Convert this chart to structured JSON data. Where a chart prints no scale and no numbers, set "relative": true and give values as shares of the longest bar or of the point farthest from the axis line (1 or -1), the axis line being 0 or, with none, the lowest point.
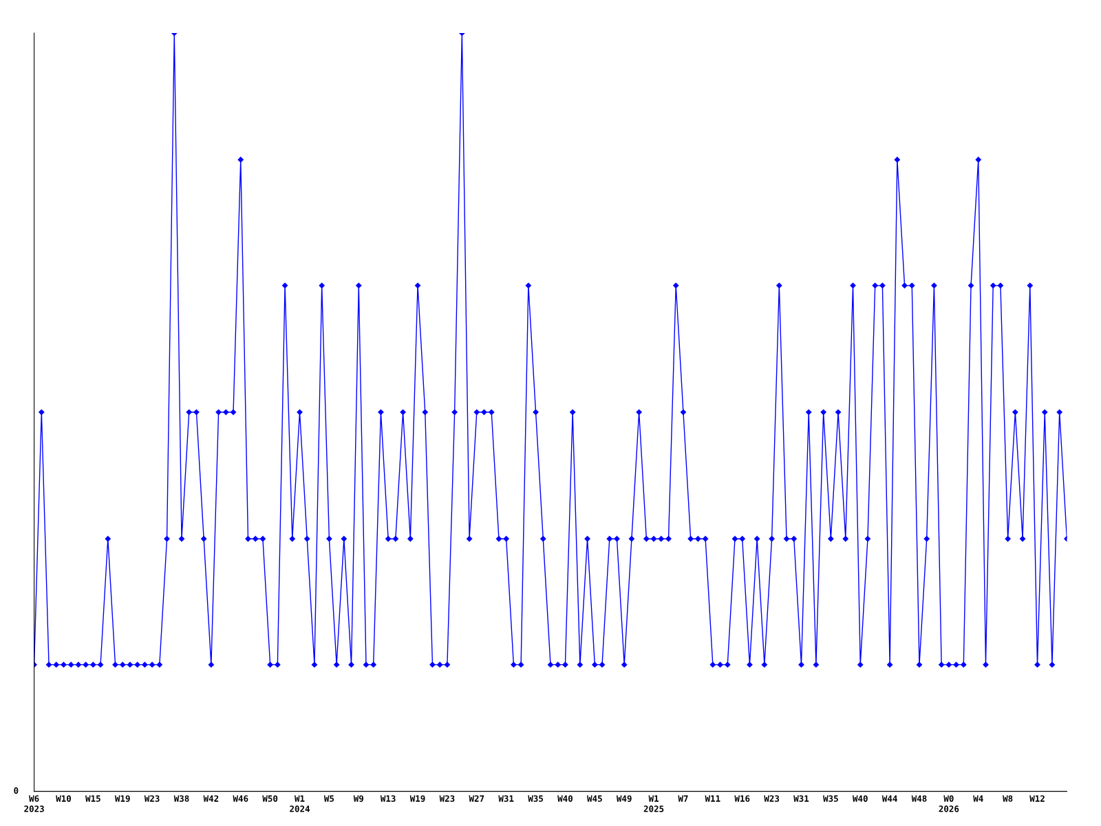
{
  "chart_data": {
    "type": "line",
    "relative": true,
    "color": "#0000ff",
    "marker": "diamond",
    "line_style": "solid",
    "grid": false,
    "legend": false,
    "annotations": [
      "0"
    ],
    "categories": [
      "W6\n2023",
      null,
      null,
      null,
      "W10",
      null,
      null,
      null,
      "W15",
      null,
      null,
      null,
      "W19",
      null,
      null,
      null,
      "W23",
      null,
      null,
      null,
      "W38",
      null,
      null,
      null,
      "W42",
      null,
      null,
      null,
      "W46",
      null,
      null,
      null,
      "W50",
      null,
      null,
      null,
      "W1\n2024",
      null,
      null,
      null,
      "W5",
      null,
      null,
      null,
      "W9",
      null,
      null,
      null,
      "W13",
      null,
      null,
      null,
      "W19",
      null,
      null,
      null,
      "W23",
      null,
      null,
      null,
      "W27",
      null,
      null,
      null,
      "W31",
      null,
      null,
      null,
      "W35",
      null,
      null,
      null,
      "W40",
      null,
      null,
      null,
      "W45",
      null,
      null,
      null,
      "W49",
      null,
      null,
      null,
      "W1\n2025",
      null,
      null,
      null,
      "W7",
      null,
      null,
      null,
      "W11",
      null,
      null,
      null,
      "W16",
      null,
      null,
      null,
      "W23",
      null,
      null,
      null,
      "W31",
      null,
      null,
      null,
      "W35",
      null,
      null,
      null,
      "W40",
      null,
      null,
      null,
      "W44",
      null,
      null,
      null,
      "W48",
      null,
      null,
      null,
      "W0\n2026",
      null,
      null,
      null,
      "W4",
      null,
      null,
      null,
      "W8",
      null,
      null,
      null,
      "W12",
      null,
      null,
      null,
      null
    ],
    "values": [
      0.167,
      0.5,
      0.167,
      0.167,
      0.167,
      0.167,
      0.167,
      0.167,
      0.167,
      0.167,
      0.333,
      0.167,
      0.167,
      0.167,
      0.167,
      0.167,
      0.167,
      0.167,
      0.333,
      1,
      0.333,
      0.5,
      0.5,
      0.333,
      0.167,
      0.5,
      0.5,
      0.5,
      0.833,
      0.333,
      0.333,
      0.333,
      0.167,
      0.167,
      0.667,
      0.333,
      0.5,
      0.333,
      0.167,
      0.667,
      0.333,
      0.167,
      0.333,
      0.167,
      0.667,
      0.167,
      0.167,
      0.5,
      0.333,
      0.333,
      0.5,
      0.333,
      0.667,
      0.5,
      0.167,
      0.167,
      0.167,
      0.5,
      1,
      0.333,
      0.5,
      0.5,
      0.5,
      0.333,
      0.333,
      0.167,
      0.167,
      0.667,
      0.5,
      0.333,
      0.167,
      0.167,
      0.167,
      0.5,
      0.167,
      0.333,
      0.167,
      0.167,
      0.333,
      0.333,
      0.167,
      0.333,
      0.5,
      0.333,
      0.333,
      0.333,
      0.333,
      0.667,
      0.5,
      0.333,
      0.333,
      0.333,
      0.167,
      0.167,
      0.167,
      0.333,
      0.333,
      0.167,
      0.333,
      0.167,
      0.333,
      0.667,
      0.333,
      0.333,
      0.167,
      0.5,
      0.167,
      0.5,
      0.333,
      0.5,
      0.333,
      0.667,
      0.167,
      0.333,
      0.667,
      0.667,
      0.167,
      0.833,
      0.667,
      0.667,
      0.167,
      0.333,
      0.667,
      0.167,
      0.167,
      0.167,
      0.167,
      0.667,
      0.833,
      0.167,
      0.667,
      0.667,
      0.333,
      0.5,
      0.333,
      0.667,
      0.167,
      0.5,
      0.167,
      0.5,
      0.333
    ]
  }
}
